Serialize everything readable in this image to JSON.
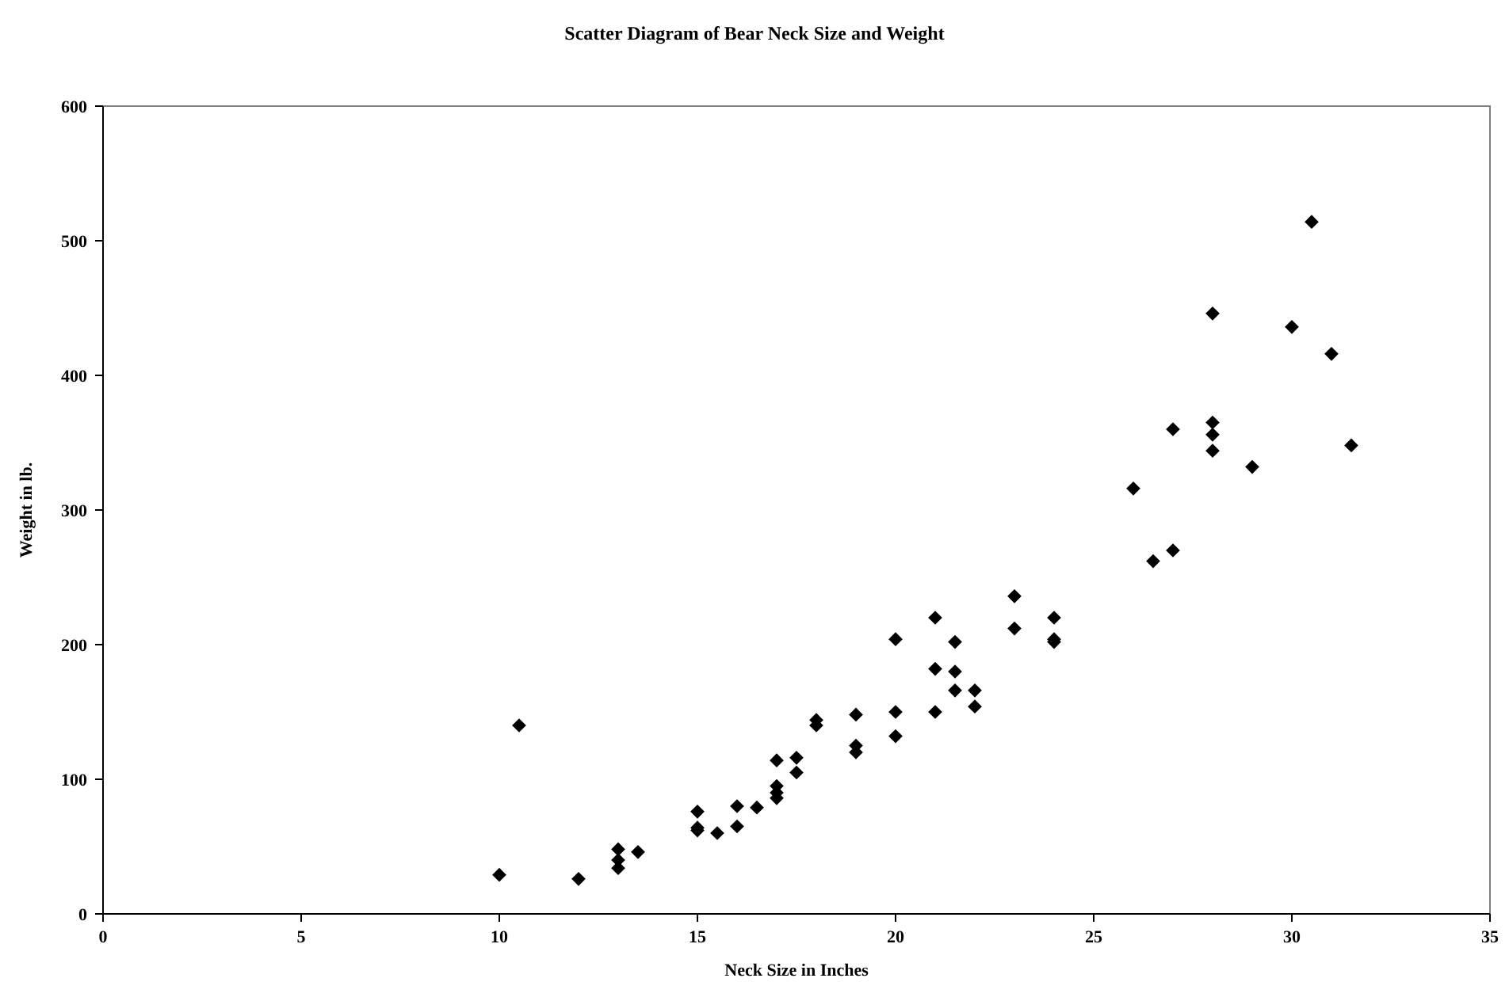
{
  "chart_data": {
    "type": "scatter",
    "title": "Scatter Diagram of Bear Neck Size and Weight",
    "xlabel": "Neck Size in Inches",
    "ylabel": "Weight in lb.",
    "x": [
      10,
      10.5,
      12,
      13,
      13,
      13,
      13.5,
      15,
      15,
      15,
      15.5,
      16,
      16,
      16.5,
      17,
      17,
      17,
      17,
      17.5,
      17.5,
      18,
      18,
      19,
      19,
      19,
      20,
      20,
      20,
      21,
      21,
      21,
      21.5,
      21.5,
      21.5,
      22,
      22,
      23,
      23,
      24,
      24,
      24,
      26,
      26.5,
      27,
      27,
      28,
      28,
      28,
      28,
      29,
      30,
      30.5,
      31,
      31.5
    ],
    "values": [
      29,
      140,
      26,
      48,
      40,
      34,
      46,
      76,
      64,
      62,
      60,
      80,
      65,
      79,
      114,
      95,
      90,
      86,
      116,
      105,
      144,
      140,
      148,
      125,
      120,
      204,
      150,
      132,
      220,
      182,
      150,
      202,
      180,
      166,
      166,
      154,
      236,
      212,
      220,
      204,
      202,
      316,
      262,
      360,
      270,
      446,
      365,
      356,
      344,
      332,
      436,
      514,
      416,
      348
    ],
    "color": "#000000",
    "marker": "diamond",
    "xlim": [
      0,
      35
    ],
    "xticks": [
      0,
      5,
      10,
      15,
      20,
      25,
      30,
      35
    ],
    "ylim": [
      0,
      600
    ],
    "yticks": [
      0,
      100,
      200,
      300,
      400,
      500,
      600
    ],
    "grid": false
  }
}
